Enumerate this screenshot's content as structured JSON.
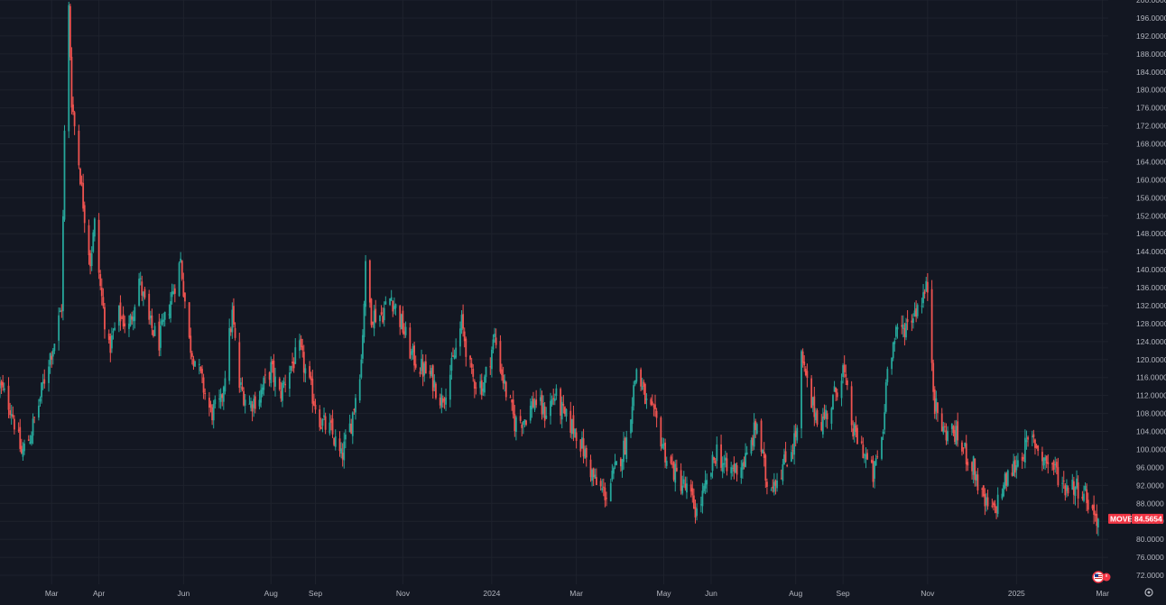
{
  "chart_data": {
    "type": "candlestick",
    "symbol": "MOVE",
    "last_price": "84.5654",
    "colors": {
      "background": "#131722",
      "grid": "#1e222d",
      "up": "#26a69a",
      "down": "#ef5350",
      "axis_text": "#b2b5be",
      "last_price_tag": "#f23645"
    },
    "grid": true,
    "y_axis": {
      "position": "right",
      "range": [
        70,
        200
      ],
      "tick_labels": [
        "72.0000",
        "76.0000",
        "80.0000",
        "84.0000",
        "88.0000",
        "92.0000",
        "96.0000",
        "100.0000",
        "104.0000",
        "108.0000",
        "112.0000",
        "116.0000",
        "120.0000",
        "124.0000",
        "128.0000",
        "132.0000",
        "136.0000",
        "140.0000",
        "144.0000",
        "148.0000",
        "152.0000",
        "156.0000",
        "160.0000",
        "164.0000",
        "168.0000",
        "172.0000",
        "176.0000",
        "180.0000",
        "184.0000",
        "188.0000",
        "192.0000",
        "196.0000",
        "200.0000"
      ]
    },
    "x_axis": {
      "range": [
        "2023-01-24",
        "2025-03-07"
      ],
      "ticks": [
        {
          "label": "Mar",
          "date": "2023-03-01"
        },
        {
          "label": "Apr",
          "date": "2023-04-03"
        },
        {
          "label": "Jun",
          "date": "2023-06-01"
        },
        {
          "label": "Aug",
          "date": "2023-08-01"
        },
        {
          "label": "Sep",
          "date": "2023-09-01"
        },
        {
          "label": "Nov",
          "date": "2023-11-01"
        },
        {
          "label": "2024",
          "date": "2024-01-02"
        },
        {
          "label": "Mar",
          "date": "2024-03-01"
        },
        {
          "label": "May",
          "date": "2024-05-01"
        },
        {
          "label": "Jun",
          "date": "2024-06-03"
        },
        {
          "label": "Aug",
          "date": "2024-08-01"
        },
        {
          "label": "Sep",
          "date": "2024-09-03"
        },
        {
          "label": "Nov",
          "date": "2024-11-01"
        },
        {
          "label": "2025",
          "date": "2025-01-02"
        },
        {
          "label": "Mar",
          "date": "2025-03-03"
        }
      ]
    },
    "series_close": [
      {
        "date": "2023-01-24",
        "value": 114
      },
      {
        "date": "2023-02-01",
        "value": 109
      },
      {
        "date": "2023-02-08",
        "value": 99
      },
      {
        "date": "2023-02-14",
        "value": 103
      },
      {
        "date": "2023-02-20",
        "value": 110
      },
      {
        "date": "2023-02-27",
        "value": 120
      },
      {
        "date": "2023-03-03",
        "value": 124
      },
      {
        "date": "2023-03-08",
        "value": 132
      },
      {
        "date": "2023-03-10",
        "value": 170
      },
      {
        "date": "2023-03-13",
        "value": 198
      },
      {
        "date": "2023-03-15",
        "value": 178
      },
      {
        "date": "2023-03-17",
        "value": 172
      },
      {
        "date": "2023-03-20",
        "value": 164
      },
      {
        "date": "2023-03-23",
        "value": 155
      },
      {
        "date": "2023-03-28",
        "value": 142
      },
      {
        "date": "2023-03-31",
        "value": 150
      },
      {
        "date": "2023-04-04",
        "value": 136
      },
      {
        "date": "2023-04-10",
        "value": 122
      },
      {
        "date": "2023-04-17",
        "value": 130
      },
      {
        "date": "2023-04-24",
        "value": 127
      },
      {
        "date": "2023-05-01",
        "value": 138
      },
      {
        "date": "2023-05-08",
        "value": 128
      },
      {
        "date": "2023-05-15",
        "value": 124
      },
      {
        "date": "2023-05-22",
        "value": 132
      },
      {
        "date": "2023-05-30",
        "value": 142
      },
      {
        "date": "2023-06-05",
        "value": 124
      },
      {
        "date": "2023-06-12",
        "value": 117
      },
      {
        "date": "2023-06-20",
        "value": 108
      },
      {
        "date": "2023-06-27",
        "value": 110
      },
      {
        "date": "2023-07-05",
        "value": 130
      },
      {
        "date": "2023-07-10",
        "value": 114
      },
      {
        "date": "2023-07-17",
        "value": 110
      },
      {
        "date": "2023-07-24",
        "value": 112
      },
      {
        "date": "2023-08-01",
        "value": 118
      },
      {
        "date": "2023-08-07",
        "value": 112
      },
      {
        "date": "2023-08-14",
        "value": 118
      },
      {
        "date": "2023-08-21",
        "value": 122
      },
      {
        "date": "2023-08-28",
        "value": 114
      },
      {
        "date": "2023-09-05",
        "value": 106
      },
      {
        "date": "2023-09-12",
        "value": 104
      },
      {
        "date": "2023-09-19",
        "value": 98
      },
      {
        "date": "2023-09-26",
        "value": 106
      },
      {
        "date": "2023-10-03",
        "value": 120
      },
      {
        "date": "2023-10-06",
        "value": 140
      },
      {
        "date": "2023-10-10",
        "value": 130
      },
      {
        "date": "2023-10-17",
        "value": 130
      },
      {
        "date": "2023-10-24",
        "value": 134
      },
      {
        "date": "2023-10-31",
        "value": 128
      },
      {
        "date": "2023-11-07",
        "value": 121
      },
      {
        "date": "2023-11-14",
        "value": 118
      },
      {
        "date": "2023-11-21",
        "value": 116
      },
      {
        "date": "2023-11-28",
        "value": 111
      },
      {
        "date": "2023-12-05",
        "value": 118
      },
      {
        "date": "2023-12-12",
        "value": 128
      },
      {
        "date": "2023-12-19",
        "value": 116
      },
      {
        "date": "2023-12-27",
        "value": 114
      },
      {
        "date": "2024-01-04",
        "value": 125
      },
      {
        "date": "2024-01-11",
        "value": 114
      },
      {
        "date": "2024-01-18",
        "value": 106
      },
      {
        "date": "2024-01-25",
        "value": 107
      },
      {
        "date": "2024-02-01",
        "value": 111
      },
      {
        "date": "2024-02-08",
        "value": 108
      },
      {
        "date": "2024-02-15",
        "value": 112
      },
      {
        "date": "2024-02-22",
        "value": 107
      },
      {
        "date": "2024-03-01",
        "value": 104
      },
      {
        "date": "2024-03-08",
        "value": 98
      },
      {
        "date": "2024-03-15",
        "value": 92
      },
      {
        "date": "2024-03-22",
        "value": 90
      },
      {
        "date": "2024-03-29",
        "value": 96
      },
      {
        "date": "2024-04-05",
        "value": 102
      },
      {
        "date": "2024-04-12",
        "value": 118
      },
      {
        "date": "2024-04-19",
        "value": 110
      },
      {
        "date": "2024-04-26",
        "value": 106
      },
      {
        "date": "2024-05-03",
        "value": 98
      },
      {
        "date": "2024-05-10",
        "value": 94
      },
      {
        "date": "2024-05-17",
        "value": 91
      },
      {
        "date": "2024-05-24",
        "value": 86
      },
      {
        "date": "2024-05-31",
        "value": 92
      },
      {
        "date": "2024-06-07",
        "value": 100
      },
      {
        "date": "2024-06-14",
        "value": 95
      },
      {
        "date": "2024-06-21",
        "value": 96
      },
      {
        "date": "2024-06-28",
        "value": 98
      },
      {
        "date": "2024-07-05",
        "value": 106
      },
      {
        "date": "2024-07-12",
        "value": 92
      },
      {
        "date": "2024-07-19",
        "value": 94
      },
      {
        "date": "2024-07-26",
        "value": 98
      },
      {
        "date": "2024-08-02",
        "value": 104
      },
      {
        "date": "2024-08-05",
        "value": 120
      },
      {
        "date": "2024-08-12",
        "value": 110
      },
      {
        "date": "2024-08-19",
        "value": 106
      },
      {
        "date": "2024-08-26",
        "value": 110
      },
      {
        "date": "2024-09-03",
        "value": 118
      },
      {
        "date": "2024-09-10",
        "value": 104
      },
      {
        "date": "2024-09-17",
        "value": 100
      },
      {
        "date": "2024-09-24",
        "value": 94
      },
      {
        "date": "2024-10-01",
        "value": 104
      },
      {
        "date": "2024-10-04",
        "value": 120
      },
      {
        "date": "2024-10-11",
        "value": 126
      },
      {
        "date": "2024-10-18",
        "value": 128
      },
      {
        "date": "2024-10-25",
        "value": 132
      },
      {
        "date": "2024-11-01",
        "value": 136
      },
      {
        "date": "2024-11-06",
        "value": 110
      },
      {
        "date": "2024-11-12",
        "value": 104
      },
      {
        "date": "2024-11-19",
        "value": 104
      },
      {
        "date": "2024-11-26",
        "value": 100
      },
      {
        "date": "2024-12-03",
        "value": 96
      },
      {
        "date": "2024-12-10",
        "value": 88
      },
      {
        "date": "2024-12-17",
        "value": 86
      },
      {
        "date": "2024-12-24",
        "value": 92
      },
      {
        "date": "2024-12-31",
        "value": 96
      },
      {
        "date": "2025-01-07",
        "value": 100
      },
      {
        "date": "2025-01-14",
        "value": 102
      },
      {
        "date": "2025-01-21",
        "value": 98
      },
      {
        "date": "2025-01-28",
        "value": 96
      },
      {
        "date": "2025-02-04",
        "value": 92
      },
      {
        "date": "2025-02-11",
        "value": 92
      },
      {
        "date": "2025-02-18",
        "value": 91
      },
      {
        "date": "2025-02-24",
        "value": 86
      },
      {
        "date": "2025-02-28",
        "value": 84.5654
      }
    ]
  },
  "toolbar": {
    "flag_icon": "us-flag-icon",
    "settings_icon": "gear-icon"
  }
}
